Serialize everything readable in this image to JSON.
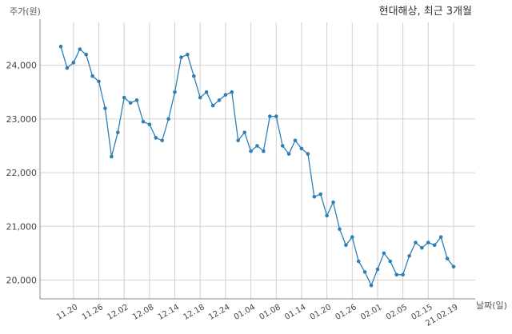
{
  "chart_data": {
    "type": "line",
    "title": "현대해상, 최근 3개월",
    "ylabel": "주가(원)",
    "xlabel": "날짜(일)",
    "ylim": [
      19650,
      24800
    ],
    "yticks": [
      20000,
      21000,
      22000,
      23000,
      24000
    ],
    "ytick_labels": [
      "20,000",
      "21,000",
      "22,000",
      "23,000",
      "24,000"
    ],
    "xtick_labels": [
      "11.20",
      "11.26",
      "12.02",
      "12.08",
      "12.14",
      "12.18",
      "12.24",
      "01.04",
      "01.08",
      "01.14",
      "01.20",
      "01.26",
      "02.01",
      "02.05",
      "02.15",
      "21.02.19"
    ],
    "xtick_index": [
      2,
      6,
      10,
      14,
      18,
      22,
      26,
      30,
      34,
      38,
      42,
      46,
      50,
      54,
      58,
      62
    ],
    "grid": true,
    "color": "#2e7fb8",
    "values": [
      24350,
      23950,
      24050,
      24300,
      24200,
      23800,
      23700,
      23200,
      22300,
      22750,
      23400,
      23300,
      23350,
      22950,
      22900,
      22650,
      22600,
      23000,
      23500,
      24150,
      24200,
      23800,
      23400,
      23500,
      23250,
      23350,
      23450,
      23500,
      22600,
      22750,
      22400,
      22500,
      22400,
      23050,
      23050,
      22500,
      22350,
      22600,
      22450,
      22350,
      21550,
      21600,
      21200,
      21450,
      20950,
      20650,
      20800,
      20350,
      20150,
      19900,
      20200,
      20500,
      20350,
      20100,
      20100,
      20450,
      20700,
      20600,
      20700,
      20650,
      20800,
      20400,
      20250
    ]
  }
}
